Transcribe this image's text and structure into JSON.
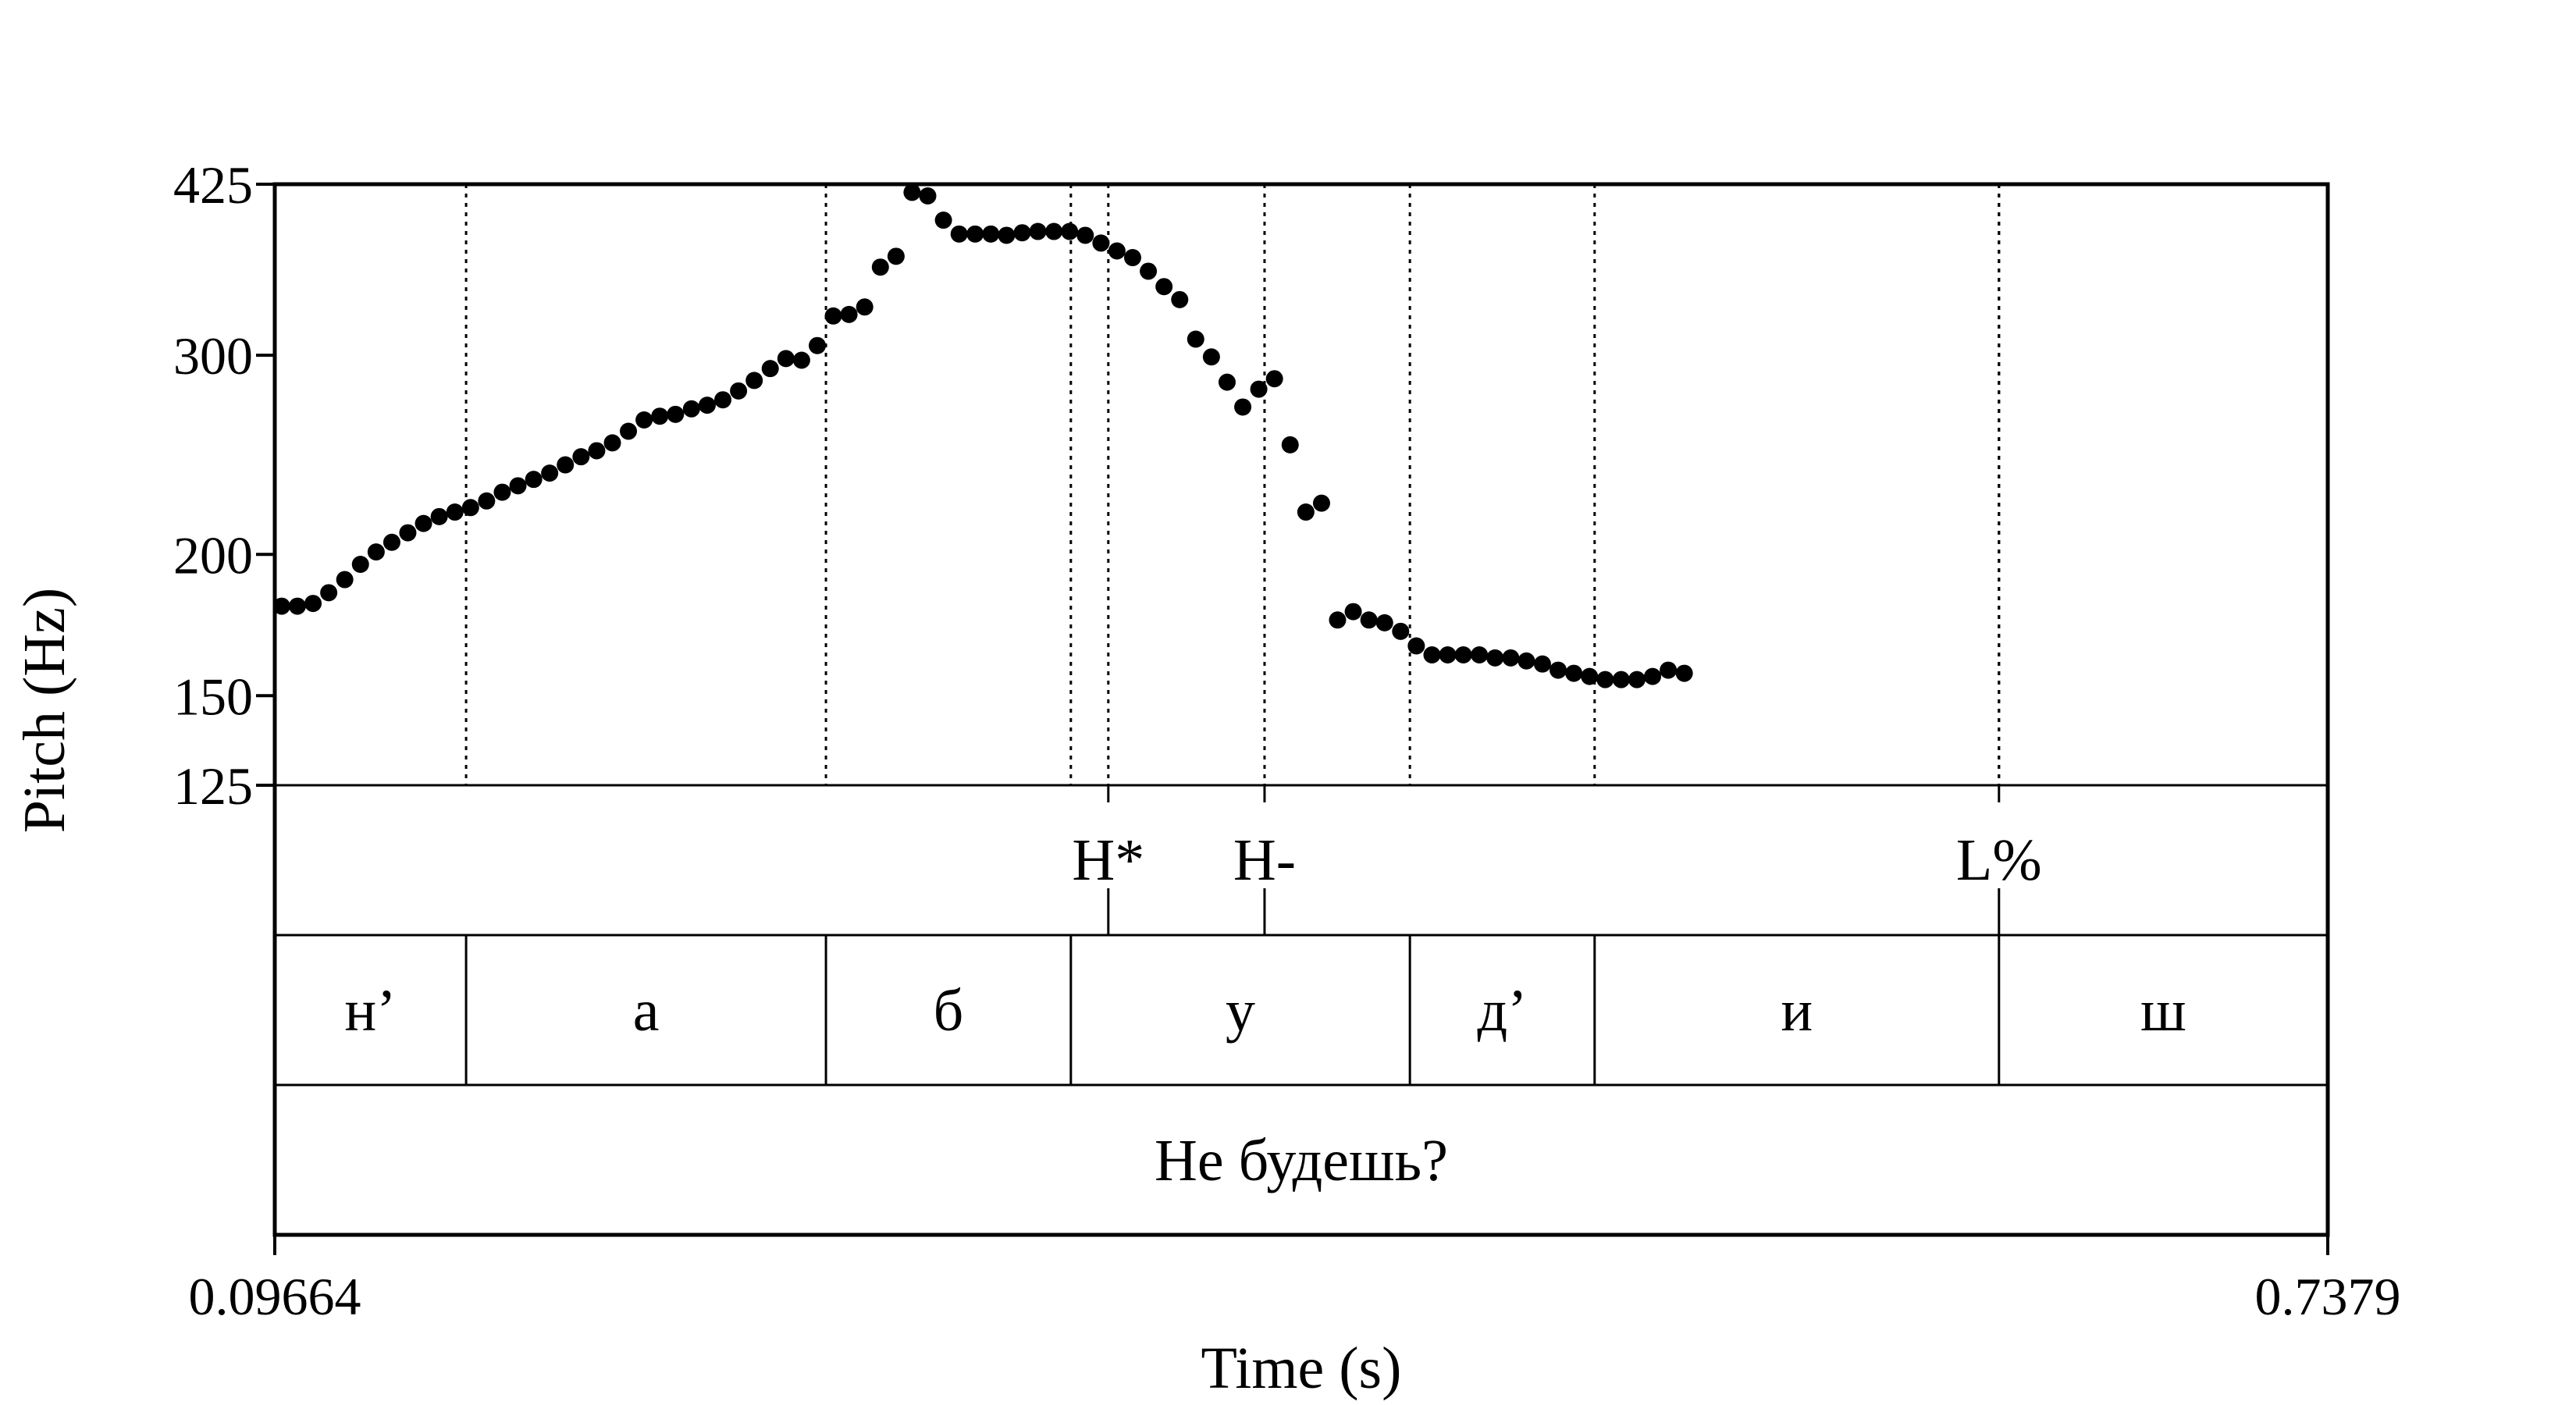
{
  "chart_data": {
    "type": "scatter",
    "ylabel": "Pitch (Hz)",
    "xlabel": "Time (s)",
    "xlim": [
      0.09664,
      0.7379
    ],
    "ylim": [
      125,
      425
    ],
    "y_scale": "log",
    "y_ticks": [
      {
        "value": 425,
        "label": "425"
      },
      {
        "value": 300,
        "label": "300"
      },
      {
        "value": 200,
        "label": "200"
      },
      {
        "value": 150,
        "label": "150"
      },
      {
        "value": 125,
        "label": "125"
      }
    ],
    "x_tick_labels": [
      "0.09664",
      "0.7379"
    ],
    "grid": false,
    "pitch_points": [
      [
        0.0988,
        180
      ],
      [
        0.1037,
        180
      ],
      [
        0.1086,
        181
      ],
      [
        0.1135,
        185
      ],
      [
        0.1185,
        190
      ],
      [
        0.1234,
        196
      ],
      [
        0.1283,
        201
      ],
      [
        0.1332,
        205
      ],
      [
        0.1382,
        209
      ],
      [
        0.1431,
        213
      ],
      [
        0.148,
        216
      ],
      [
        0.1529,
        218
      ],
      [
        0.1578,
        220
      ],
      [
        0.1628,
        223
      ],
      [
        0.1677,
        227
      ],
      [
        0.1726,
        230
      ],
      [
        0.1775,
        233
      ],
      [
        0.1825,
        236
      ],
      [
        0.1874,
        240
      ],
      [
        0.1923,
        244
      ],
      [
        0.1972,
        247
      ],
      [
        0.2021,
        251
      ],
      [
        0.2071,
        257
      ],
      [
        0.212,
        263
      ],
      [
        0.2169,
        265
      ],
      [
        0.2218,
        266
      ],
      [
        0.2268,
        269
      ],
      [
        0.2317,
        271
      ],
      [
        0.2366,
        274
      ],
      [
        0.2415,
        279
      ],
      [
        0.2464,
        285
      ],
      [
        0.2514,
        292
      ],
      [
        0.2563,
        298
      ],
      [
        0.2612,
        297
      ],
      [
        0.2661,
        306
      ],
      [
        0.2711,
        325
      ],
      [
        0.276,
        326
      ],
      [
        0.2809,
        331
      ],
      [
        0.2858,
        359
      ],
      [
        0.2907,
        367
      ],
      [
        0.2957,
        418
      ],
      [
        0.3006,
        415
      ],
      [
        0.3055,
        395
      ],
      [
        0.3104,
        384
      ],
      [
        0.3154,
        384
      ],
      [
        0.3203,
        384
      ],
      [
        0.3252,
        383
      ],
      [
        0.3301,
        385
      ],
      [
        0.335,
        386
      ],
      [
        0.34,
        386
      ],
      [
        0.3449,
        386
      ],
      [
        0.3498,
        383
      ],
      [
        0.3547,
        377
      ],
      [
        0.3597,
        371
      ],
      [
        0.3646,
        366
      ],
      [
        0.3695,
        356
      ],
      [
        0.3744,
        345
      ],
      [
        0.3793,
        336
      ],
      [
        0.3843,
        310
      ],
      [
        0.3892,
        299
      ],
      [
        0.3941,
        284
      ],
      [
        0.399,
        270
      ],
      [
        0.404,
        280
      ],
      [
        0.4089,
        286
      ],
      [
        0.4138,
        250
      ],
      [
        0.4187,
        218
      ],
      [
        0.4236,
        222
      ],
      [
        0.4286,
        175
      ],
      [
        0.4335,
        178
      ],
      [
        0.4384,
        175
      ],
      [
        0.4433,
        174
      ],
      [
        0.4483,
        171
      ],
      [
        0.4532,
        166
      ],
      [
        0.4581,
        163
      ],
      [
        0.463,
        163
      ],
      [
        0.4679,
        163
      ],
      [
        0.4729,
        163
      ],
      [
        0.4778,
        162
      ],
      [
        0.4827,
        162
      ],
      [
        0.4876,
        161
      ],
      [
        0.4926,
        160
      ],
      [
        0.4975,
        158
      ],
      [
        0.5024,
        157
      ],
      [
        0.5073,
        156
      ],
      [
        0.5122,
        155
      ],
      [
        0.5172,
        155
      ],
      [
        0.5221,
        155
      ],
      [
        0.527,
        156
      ],
      [
        0.5319,
        158
      ],
      [
        0.5369,
        157
      ]
    ],
    "boundary_times": [
      0.1564,
      0.2688,
      0.3453,
      0.4512,
      0.5089,
      0.6352
    ],
    "tiers": [
      {
        "name": "tones",
        "points": [
          {
            "time": 0.357,
            "label": "H*"
          },
          {
            "time": 0.4058,
            "label": "H-"
          },
          {
            "time": 0.6352,
            "label": "L%"
          }
        ]
      },
      {
        "name": "segments",
        "boundaries": [
          0.1564,
          0.2688,
          0.3453,
          0.4512,
          0.5089,
          0.6352
        ],
        "labels": [
          "н’",
          "а",
          "б",
          "у",
          "д’",
          "и",
          "ш"
        ]
      },
      {
        "name": "words",
        "boundaries": [],
        "labels": [
          "Не будешь?"
        ]
      }
    ]
  }
}
